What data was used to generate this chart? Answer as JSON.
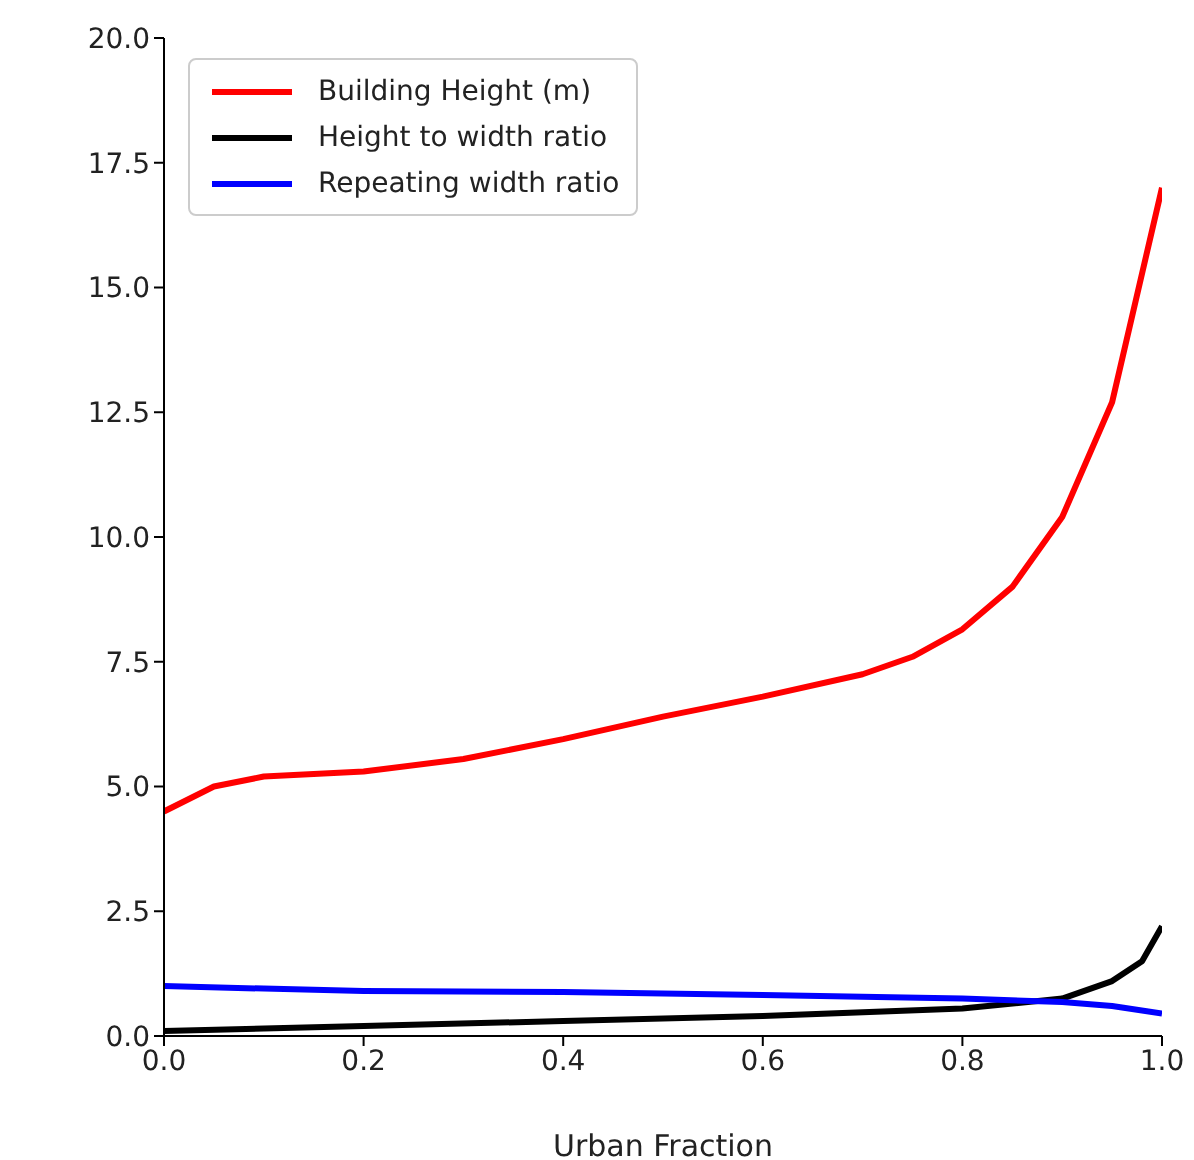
{
  "chart_data": {
    "type": "line",
    "xlabel": "Urban Fraction",
    "xlim": [
      0,
      1
    ],
    "xticks": [
      {
        "value": 0,
        "label": "0.0"
      },
      {
        "value": 0.2,
        "label": "0.2"
      },
      {
        "value": 0.4,
        "label": "0.4"
      },
      {
        "value": 0.6,
        "label": "0.6"
      },
      {
        "value": 0.8,
        "label": "0.8"
      },
      {
        "value": 1,
        "label": "1.0"
      }
    ],
    "ylim": [
      0,
      20
    ],
    "yticks": [
      {
        "value": 0,
        "label": "0.0"
      },
      2.5,
      {
        "value": 5,
        "label": "5.0"
      },
      7.5,
      {
        "value": 10,
        "label": "10.0"
      },
      12.5,
      {
        "value": 15,
        "label": "15.0"
      },
      17.5,
      {
        "value": 20,
        "label": "20.0"
      }
    ],
    "grid": false,
    "legend": "top left",
    "marker": "none",
    "line_style": "solid",
    "series": [
      {
        "name": "Building Height (m)",
        "color": "#ff0000",
        "x": [
          0,
          0.05,
          0.1,
          0.2,
          0.3,
          0.4,
          0.5,
          0.6,
          0.7,
          0.75,
          0.8,
          0.85,
          0.9,
          0.95,
          1
        ],
        "values": [
          4.5,
          5.0,
          5.2,
          5.3,
          5.55,
          5.95,
          6.4,
          6.8,
          7.25,
          7.6,
          8.15,
          9.0,
          10.4,
          12.7,
          17.0
        ]
      },
      {
        "name": "Height to width ratio",
        "color": "#000000",
        "x": [
          0,
          0.2,
          0.4,
          0.6,
          0.8,
          0.9,
          0.95,
          0.98,
          1
        ],
        "values": [
          0.1,
          0.2,
          0.3,
          0.4,
          0.55,
          0.75,
          1.1,
          1.5,
          2.2
        ]
      },
      {
        "name": "Repeating width ratio",
        "color": "#0000ff",
        "x": [
          0,
          0.2,
          0.4,
          0.6,
          0.8,
          0.9,
          0.95,
          1
        ],
        "values": [
          1.0,
          0.9,
          0.88,
          0.82,
          0.75,
          0.68,
          0.6,
          0.45
        ]
      }
    ]
  }
}
